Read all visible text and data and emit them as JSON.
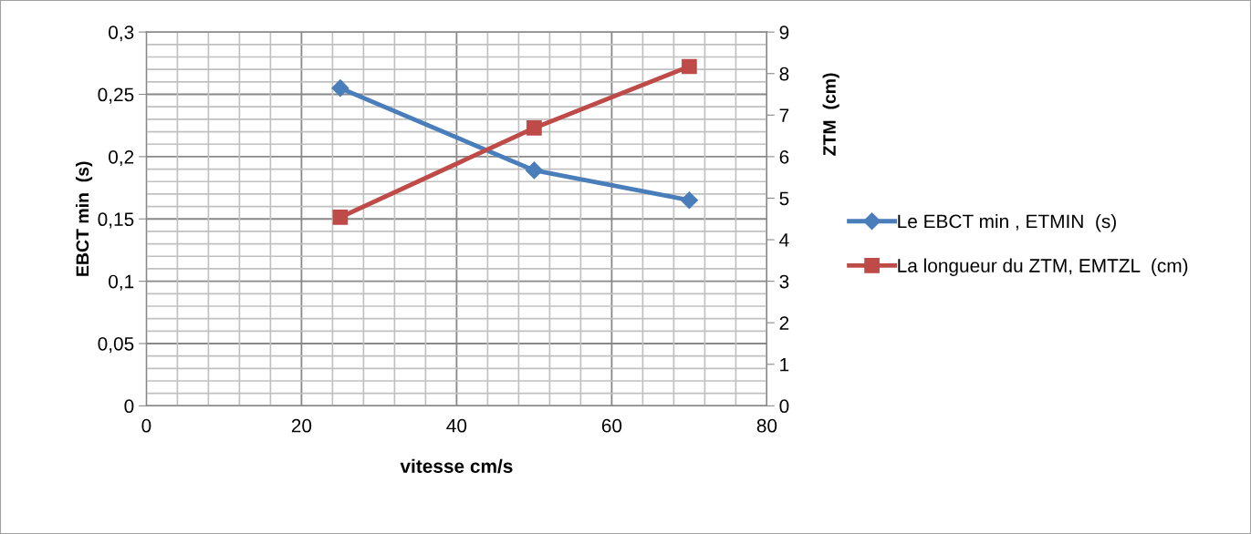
{
  "chart_data": {
    "type": "line",
    "xlabel": "vitesse cm/s",
    "ylabel": "EBCT min  (s)",
    "y2label": "ZTM  (cm)",
    "x": [
      25,
      50,
      70
    ],
    "series": [
      {
        "name": "Le EBCT min , ETMIN  (s)",
        "color": "#4a7ebb",
        "values": [
          0.255,
          0.189,
          0.165
        ],
        "marker": "diamond"
      },
      {
        "name": "La longueur du ZTM, EMTZL  (cm)",
        "color": "#be4b48",
        "values": [
          4.54,
          6.69,
          8.17
        ],
        "marker": "square",
        "axis": "y2"
      }
    ],
    "xlim": [
      0,
      80
    ],
    "xticks": [
      0,
      20,
      40,
      60,
      80
    ],
    "ylim": [
      0,
      0.3
    ],
    "yticks": [
      {
        "value": 0,
        "label": "0"
      },
      {
        "value": 0.05,
        "label": "0,05"
      },
      {
        "value": 0.1,
        "label": "0,1"
      },
      {
        "value": 0.15,
        "label": "0,15"
      },
      {
        "value": 0.2,
        "label": "0,2"
      },
      {
        "value": 0.25,
        "label": "0,25"
      },
      {
        "value": 0.3,
        "label": "0,3"
      }
    ],
    "y2lim": [
      0,
      9
    ],
    "y2ticks": [
      0,
      1,
      2,
      3,
      4,
      5,
      6,
      7,
      8,
      9
    ],
    "grid": true,
    "legend": "right",
    "line_style": "solid"
  }
}
